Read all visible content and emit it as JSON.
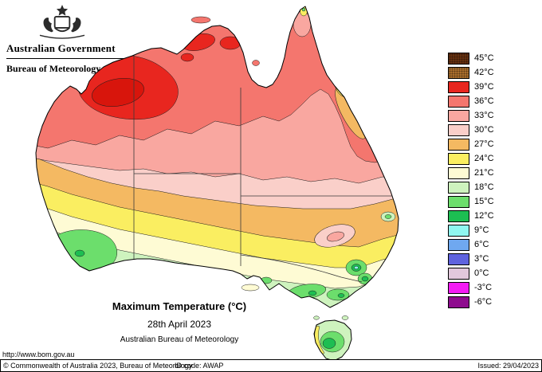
{
  "header": {
    "government": "Australian Government",
    "bureau": "Bureau of Meteorology"
  },
  "caption": {
    "title": "Maximum Temperature (°C)",
    "date": "28th April 2023",
    "source": "Australian Bureau of Meteorology"
  },
  "legend": {
    "entries": [
      {
        "temp": "45",
        "label": "45°C",
        "color": "#66300F",
        "speckle": true
      },
      {
        "temp": "42",
        "label": "42°C",
        "color": "#A96E2C",
        "speckle": true
      },
      {
        "temp": "39",
        "label": "39°C",
        "color": "#E8261F"
      },
      {
        "temp": "36",
        "label": "36°C",
        "color": "#F4766E"
      },
      {
        "temp": "33",
        "label": "33°C",
        "color": "#F9A7A0"
      },
      {
        "temp": "30",
        "label": "30°C",
        "color": "#FACFC9"
      },
      {
        "temp": "27",
        "label": "27°C",
        "color": "#F4B962"
      },
      {
        "temp": "24",
        "label": "24°C",
        "color": "#FAEE61"
      },
      {
        "temp": "21",
        "label": "21°C",
        "color": "#FEFBD4"
      },
      {
        "temp": "18",
        "label": "18°C",
        "color": "#CEF3BE"
      },
      {
        "temp": "15",
        "label": "15°C",
        "color": "#6CDE6C"
      },
      {
        "temp": "12",
        "label": "12°C",
        "color": "#1DBE52"
      },
      {
        "temp": "9",
        "label": "9°C",
        "color": "#8FF7F0"
      },
      {
        "temp": "6",
        "label": "6°C",
        "color": "#6FA8F0"
      },
      {
        "temp": "3",
        "label": "3°C",
        "color": "#5F63DE"
      },
      {
        "temp": "0",
        "label": "0°C",
        "color": "#E2C8DC"
      },
      {
        "temp": "-3",
        "label": "-3°C",
        "color": "#F31BF3"
      },
      {
        "temp": "-6",
        "label": "-6°C",
        "color": "#8E0C8E"
      }
    ]
  },
  "map": {
    "extra_colors": {
      "red_core": "#D8150C"
    }
  },
  "footer": {
    "url": "http://www.bom.gov.au",
    "copyright": "© Commonwealth of Australia 2023, Bureau of Meteorology",
    "id_code": "ID code: AWAP",
    "issued": "Issued: 29/04/2023"
  }
}
